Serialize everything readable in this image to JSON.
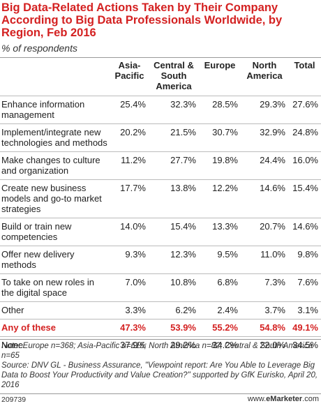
{
  "title": "Big Data-Related Actions Taken by Their Company According to Big Data Professionals Worldwide, by Region, Feb 2016",
  "subtitle": "% of respondents",
  "chart_data": {
    "type": "table",
    "columns": [
      "",
      "Asia-\nPacific",
      "Central &\nSouth\nAmerica",
      "Europe",
      "North\nAmerica",
      "Total"
    ],
    "rows": [
      {
        "label": "Enhance information management",
        "values": [
          "25.4%",
          "32.3%",
          "28.5%",
          "29.3%",
          "27.6%"
        ],
        "highlight": false
      },
      {
        "label": "Implement/integrate new technologies and methods",
        "values": [
          "20.2%",
          "21.5%",
          "30.7%",
          "32.9%",
          "24.8%"
        ],
        "highlight": false
      },
      {
        "label": "Make changes to culture and organization",
        "values": [
          "11.2%",
          "27.7%",
          "19.8%",
          "24.4%",
          "16.0%"
        ],
        "highlight": false
      },
      {
        "label": "Create new business models and go-to market strategies",
        "values": [
          "17.7%",
          "13.8%",
          "12.2%",
          "14.6%",
          "15.4%"
        ],
        "highlight": false
      },
      {
        "label": "Build or train new competencies",
        "values": [
          "14.0%",
          "15.4%",
          "13.3%",
          "20.7%",
          "14.6%"
        ],
        "highlight": false
      },
      {
        "label": "Offer new delivery methods",
        "values": [
          "9.3%",
          "12.3%",
          "9.5%",
          "11.0%",
          "9.8%"
        ],
        "highlight": false
      },
      {
        "label": "To take on new roles in the digital space",
        "values": [
          "7.0%",
          "10.8%",
          "6.8%",
          "7.3%",
          "7.6%"
        ],
        "highlight": false
      },
      {
        "label": "Other",
        "values": [
          "3.3%",
          "6.2%",
          "2.4%",
          "3.7%",
          "3.1%"
        ],
        "highlight": false
      },
      {
        "label": "Any of these",
        "values": [
          "47.3%",
          "53.9%",
          "55.2%",
          "54.8%",
          "49.1%"
        ],
        "highlight": true
      },
      {
        "label": "None",
        "values": [
          "37.9%",
          "29.2%",
          "34.2%",
          "22.0%",
          "34.5%"
        ],
        "highlight": false
      }
    ]
  },
  "notes": {
    "note": "Note: Europe n=368; Asia-Pacific n=615; North America n=82; Central & South America n=65",
    "source": "Source: DNV GL - Business Assurance, \"Viewpoint report: Are You Able to Leverage Big Data to Boost Your Productivity and Value Creation?\" supported by GfK Eurisko, April 20, 2016"
  },
  "footer": {
    "id": "209739",
    "brand_prefix": "www.",
    "brand_name": "eMarketer",
    "brand_suffix": ".com"
  },
  "colors": {
    "accent": "#d42121"
  }
}
